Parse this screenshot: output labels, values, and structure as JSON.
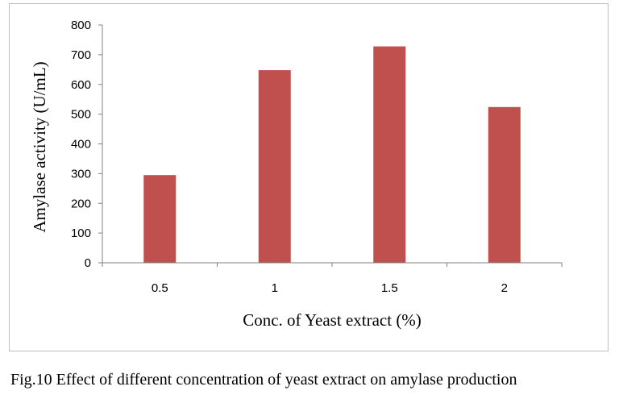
{
  "caption": "Fig.10 Effect of different concentration of yeast extract on amylase production",
  "chart_data": {
    "type": "bar",
    "categories": [
      "0.5",
      "1",
      "1.5",
      "2"
    ],
    "values": [
      295,
      648,
      728,
      524
    ],
    "xlabel": "Conc. of Yeast extract (%)",
    "ylabel": "Amylase activity (U/mL)",
    "ylim": [
      0,
      800
    ],
    "yticks": [
      0,
      100,
      200,
      300,
      400,
      500,
      600,
      700,
      800
    ],
    "grid": false,
    "legend": "none",
    "bar_color": "#c0504d"
  }
}
